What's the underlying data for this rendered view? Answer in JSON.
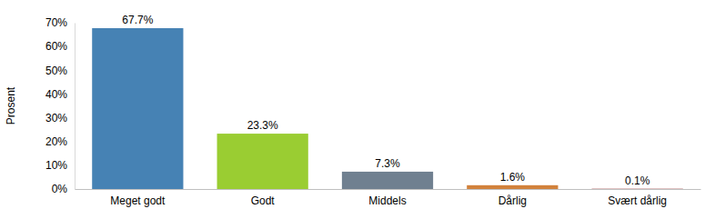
{
  "chart_data": {
    "type": "bar",
    "y_label": "Prosent",
    "categories": [
      "Meget godt",
      "Godt",
      "Middels",
      "Dårlig",
      "Svært dårlig"
    ],
    "values": [
      67.7,
      23.3,
      7.3,
      1.6,
      0.1
    ],
    "value_labels": [
      "67.7%",
      "23.3%",
      "7.3%",
      "1.6%",
      "0.1%"
    ],
    "colors": [
      "#4682b4",
      "#9acd32",
      "#708090",
      "#d2823c",
      "#8b1a1a"
    ],
    "ylim": [
      0,
      70
    ],
    "yticks": [
      {
        "value": 0,
        "label": "0%"
      },
      {
        "value": 10,
        "label": "10%"
      },
      {
        "value": 20,
        "label": "20%"
      },
      {
        "value": 30,
        "label": "30%"
      },
      {
        "value": 40,
        "label": "40%"
      },
      {
        "value": 50,
        "label": "50%"
      },
      {
        "value": 60,
        "label": "60%"
      },
      {
        "value": 70,
        "label": "70%"
      }
    ],
    "grid": false,
    "data_labels": true
  }
}
